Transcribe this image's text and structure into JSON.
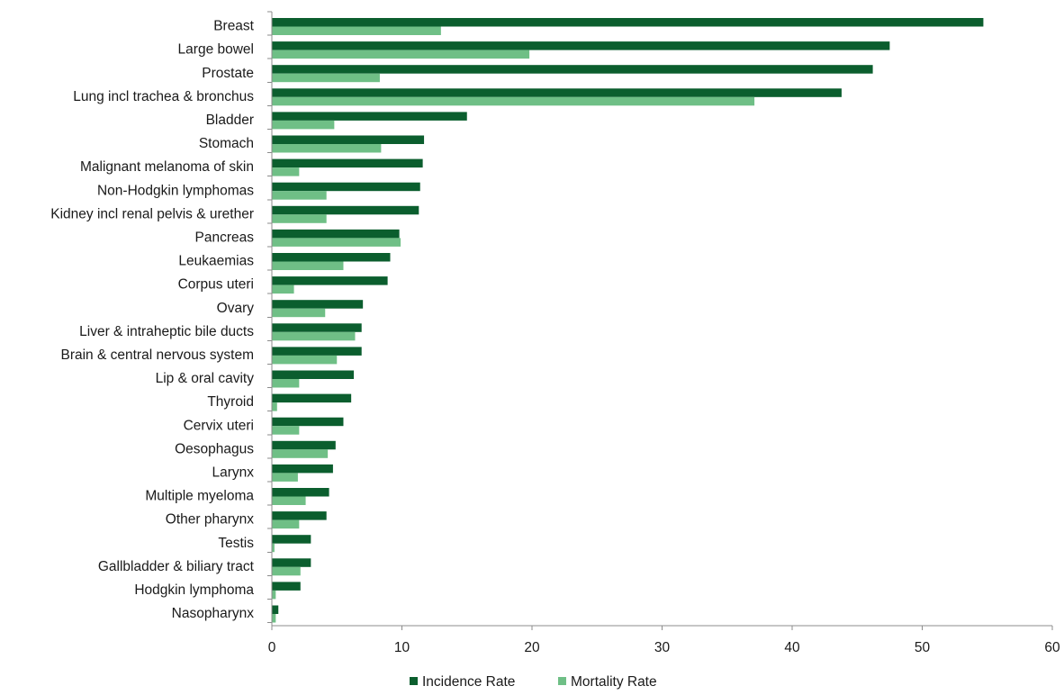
{
  "chart_data": {
    "type": "bar",
    "orientation": "horizontal",
    "title": "",
    "xlabel": "",
    "ylabel": "",
    "categories": [
      "Breast",
      "Large bowel",
      "Prostate",
      "Lung incl trachea & bronchus",
      "Bladder",
      "Stomach",
      "Malignant melanoma of skin",
      "Non-Hodgkin lymphomas",
      "Kidney incl renal pelvis & urether",
      "Pancreas",
      "Leukaemias",
      "Corpus uteri",
      "Ovary",
      "Liver & intraheptic bile ducts",
      "Brain & central nervous system",
      "Lip & oral cavity",
      "Thyroid",
      "Cervix uteri",
      "Oesophagus",
      "Larynx",
      "Multiple myeloma",
      "Other pharynx",
      "Testis",
      "Gallbladder & biliary tract",
      "Hodgkin lymphoma",
      "Nasopharynx"
    ],
    "series": [
      {
        "name": "Incidence Rate",
        "color": "#0b5e2e",
        "values": [
          54.7,
          47.5,
          46.2,
          43.8,
          15.0,
          11.7,
          11.6,
          11.4,
          11.3,
          9.8,
          9.1,
          8.9,
          7.0,
          6.9,
          6.9,
          6.3,
          6.1,
          5.5,
          4.9,
          4.7,
          4.4,
          4.2,
          3.0,
          3.0,
          2.2,
          0.5
        ]
      },
      {
        "name": "Mortality Rate",
        "color": "#6fbf86",
        "values": [
          13.0,
          19.8,
          8.3,
          37.1,
          4.8,
          8.4,
          2.1,
          4.2,
          4.2,
          9.9,
          5.5,
          1.7,
          4.1,
          6.4,
          5.0,
          2.1,
          0.4,
          2.1,
          4.3,
          2.0,
          2.6,
          2.1,
          0.2,
          2.2,
          0.3,
          0.3
        ]
      }
    ],
    "xlim": [
      0,
      60
    ],
    "xticks": [
      0,
      10,
      20,
      30,
      40,
      50,
      60
    ],
    "grid": false,
    "legend_position": "bottom-center"
  }
}
